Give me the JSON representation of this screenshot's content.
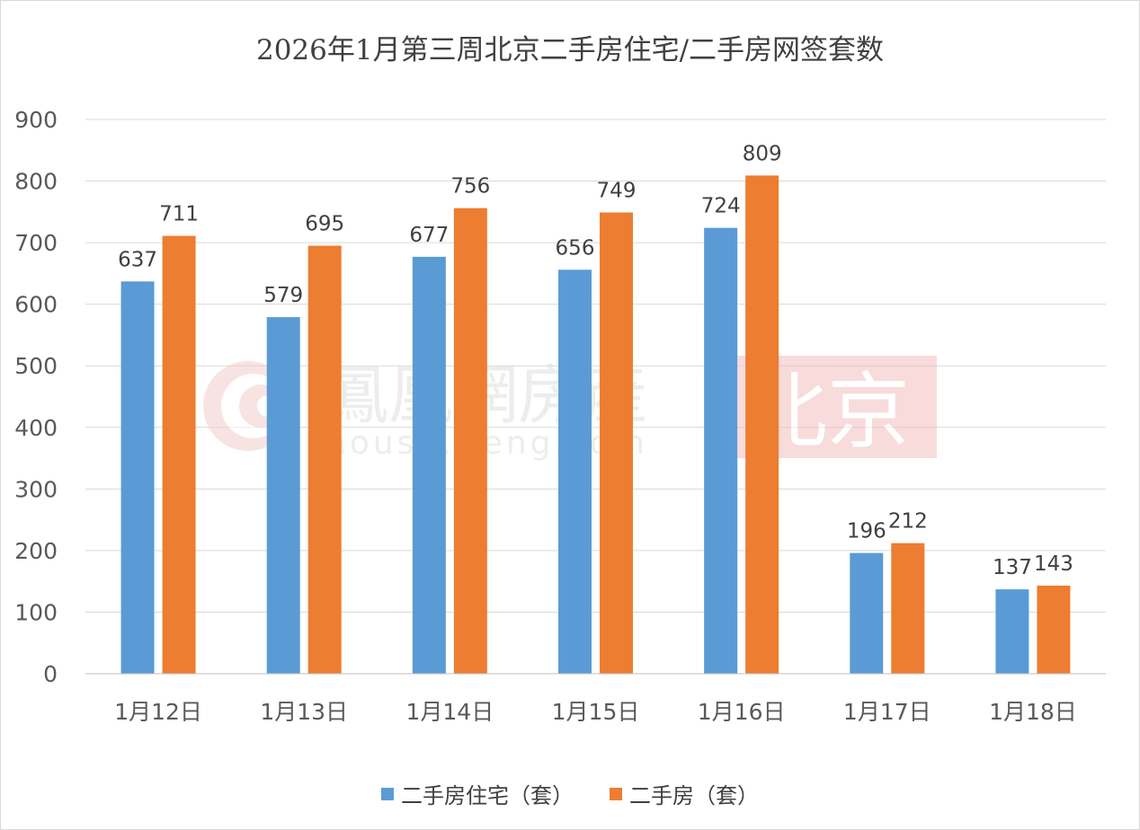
{
  "chart_data": {
    "type": "bar",
    "title": "2026年1月第三周北京二手房住宅/二手房网签套数",
    "categories": [
      "1月12日",
      "1月13日",
      "1月14日",
      "1月15日",
      "1月16日",
      "1月17日",
      "1月18日"
    ],
    "series": [
      {
        "name": "二手房住宅（套）",
        "values": [
          637,
          579,
          677,
          656,
          724,
          196,
          137
        ],
        "color": "#5b9bd5"
      },
      {
        "name": "二手房（套）",
        "values": [
          711,
          695,
          756,
          749,
          809,
          212,
          143
        ],
        "color": "#ed7d31"
      }
    ],
    "ylim": [
      0,
      900
    ],
    "yticks": [
      0,
      100,
      200,
      300,
      400,
      500,
      600,
      700,
      800,
      900
    ],
    "grid": true,
    "legend_position": "bottom",
    "data_labels": true
  },
  "watermark": {
    "brand": "鳳凰網房產",
    "url": "house.ifeng.com",
    "city": "北京"
  }
}
